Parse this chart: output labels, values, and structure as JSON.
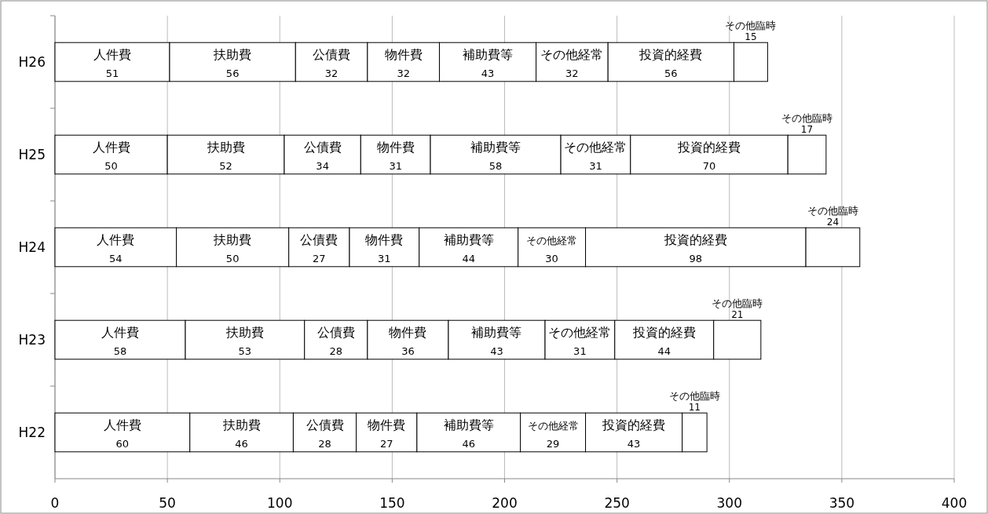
{
  "chart_data": {
    "type": "bar",
    "orientation": "horizontal",
    "stacked": true,
    "categories": [
      "H26",
      "H25",
      "H24",
      "H23",
      "H22"
    ],
    "series": [
      {
        "name": "人件費",
        "color": "#ffffff",
        "values": [
          51,
          50,
          54,
          58,
          60
        ]
      },
      {
        "name": "扶助費",
        "color": "#ffffff",
        "values": [
          56,
          52,
          50,
          53,
          46
        ]
      },
      {
        "name": "公債費",
        "color": "#ffffff",
        "values": [
          32,
          34,
          27,
          28,
          28
        ]
      },
      {
        "name": "物件費",
        "color": "#ffffff",
        "values": [
          32,
          31,
          31,
          36,
          27
        ]
      },
      {
        "name": "補助費等",
        "color": "#ffffff",
        "values": [
          43,
          58,
          44,
          43,
          46
        ]
      },
      {
        "name": "その他経常",
        "color": "#ffffff",
        "values": [
          32,
          31,
          30,
          31,
          29
        ]
      },
      {
        "name": "投資的経費",
        "color": "#ffffff",
        "values": [
          56,
          70,
          98,
          44,
          43
        ]
      },
      {
        "name": "その他臨時",
        "color": "#ffffff",
        "values": [
          15,
          17,
          24,
          21,
          11
        ]
      }
    ],
    "xlim": [
      0,
      400
    ],
    "xticks": [
      0,
      50,
      100,
      150,
      200,
      250,
      300,
      350,
      400
    ],
    "grid": "x",
    "data_labels": true
  }
}
